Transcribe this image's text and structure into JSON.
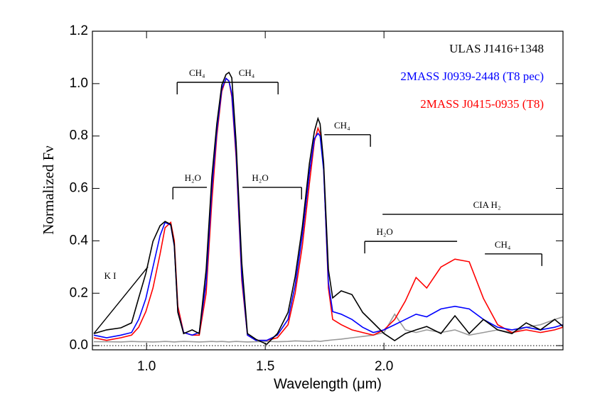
{
  "chart_data": {
    "type": "line",
    "xlabel": "Wavelength (μm)",
    "ylabel": "Normalized Fν",
    "xlim": [
      0.772,
      2.754
    ],
    "ylim": [
      -0.016,
      1.2
    ],
    "xticks": [
      {
        "value": 1,
        "label": "1.0"
      },
      1.5,
      {
        "value": 2,
        "label": "2.0"
      }
    ],
    "yticks": [
      {
        "value": 0,
        "label": "0.0"
      },
      0.2,
      0.4,
      0.6,
      0.8,
      {
        "value": 1,
        "label": "1.0"
      },
      1.2
    ],
    "zero_line": true,
    "x": [
      0.778,
      0.832,
      0.892,
      0.937,
      0.967,
      0.997,
      1.027,
      1.057,
      1.078,
      1.102,
      1.117,
      1.132,
      1.156,
      1.192,
      1.222,
      1.251,
      1.275,
      1.296,
      1.317,
      1.335,
      1.347,
      1.359,
      1.377,
      1.401,
      1.425,
      1.461,
      1.506,
      1.551,
      1.596,
      1.626,
      1.656,
      1.686,
      1.707,
      1.722,
      1.731,
      1.746,
      1.766,
      1.784,
      1.82,
      1.865,
      1.91,
      1.955,
      2.0,
      2.045,
      2.09,
      2.135,
      2.18,
      2.24,
      2.299,
      2.359,
      2.419,
      2.479,
      2.539,
      2.599,
      2.659,
      2.719,
      2.754
    ],
    "series": [
      {
        "color": "#999999",
        "values": [
          0.015,
          0.015,
          0.014,
          0.016,
          0.015,
          0.015,
          0.014,
          0.015,
          0.016,
          0.015,
          0.014,
          0.015,
          0.016,
          0.015,
          0.014,
          0.015,
          0.016,
          0.015,
          0.016,
          0.015,
          0.014,
          0.015,
          0.016,
          0.015,
          0.014,
          0.015,
          0.016,
          0.015,
          0.016,
          0.018,
          0.017,
          0.016,
          0.018,
          0.017,
          0.016,
          0.018,
          0.02,
          0.022,
          0.025,
          0.03,
          0.035,
          0.04,
          0.05,
          0.12,
          0.06,
          0.05,
          0.06,
          0.05,
          0.06,
          0.04,
          0.05,
          0.06,
          0.05,
          0.07,
          0.08,
          0.1,
          0.11
        ]
      },
      {
        "name": "2MASS J0415-0935 (T8)",
        "color": "#ff0000",
        "values": [
          0.03,
          0.02,
          0.03,
          0.04,
          0.07,
          0.13,
          0.22,
          0.35,
          0.45,
          0.47,
          0.4,
          0.15,
          0.05,
          0.04,
          0.04,
          0.2,
          0.55,
          0.8,
          0.97,
          1.02,
          1.01,
          0.95,
          0.72,
          0.25,
          0.04,
          0.02,
          0.02,
          0.03,
          0.08,
          0.2,
          0.38,
          0.62,
          0.78,
          0.83,
          0.81,
          0.68,
          0.22,
          0.1,
          0.08,
          0.06,
          0.05,
          0.04,
          0.06,
          0.1,
          0.17,
          0.26,
          0.22,
          0.3,
          0.33,
          0.32,
          0.18,
          0.08,
          0.05,
          0.06,
          0.05,
          0.06,
          0.07
        ]
      },
      {
        "name": "2MASS J0939-2448 (T8 pec)",
        "color": "#0000ff",
        "values": [
          0.04,
          0.03,
          0.04,
          0.05,
          0.1,
          0.18,
          0.3,
          0.42,
          0.47,
          0.46,
          0.38,
          0.13,
          0.05,
          0.04,
          0.05,
          0.24,
          0.6,
          0.82,
          0.98,
          1.02,
          1.01,
          0.96,
          0.74,
          0.27,
          0.04,
          0.02,
          0.02,
          0.04,
          0.1,
          0.23,
          0.42,
          0.66,
          0.79,
          0.81,
          0.8,
          0.67,
          0.24,
          0.13,
          0.12,
          0.1,
          0.07,
          0.05,
          0.06,
          0.08,
          0.1,
          0.12,
          0.11,
          0.14,
          0.15,
          0.14,
          0.1,
          0.07,
          0.06,
          0.07,
          0.06,
          0.07,
          0.08
        ]
      },
      {
        "name": "ULAS J1416+1348",
        "color": "#000000",
        "values": [
          0.046,
          0.06,
          0.068,
          0.087,
          0.182,
          0.276,
          0.398,
          0.458,
          0.474,
          0.463,
          0.385,
          0.127,
          0.046,
          0.06,
          0.046,
          0.29,
          0.642,
          0.846,
          0.995,
          1.035,
          1.043,
          1.022,
          0.778,
          0.317,
          0.046,
          0.024,
          0.005,
          0.046,
          0.127,
          0.263,
          0.453,
          0.696,
          0.818,
          0.867,
          0.846,
          0.696,
          0.29,
          0.182,
          0.209,
          0.195,
          0.127,
          0.087,
          0.046,
          0.019,
          0.046,
          0.06,
          0.073,
          0.046,
          0.114,
          0.046,
          0.1,
          0.06,
          0.046,
          0.087,
          0.06,
          0.1,
          0.073
        ]
      }
    ],
    "annotations": [
      {
        "text": "CH₄",
        "x": [
          1.129,
          1.347
        ],
        "y": 1.005,
        "tick": "left"
      },
      {
        "text": "CH₄",
        "x": [
          1.347,
          1.554
        ],
        "y": 1.005,
        "tick": "right"
      },
      {
        "text": "H₂O",
        "x": [
          1.111,
          1.254
        ],
        "y": 0.604,
        "tick": "left"
      },
      {
        "text": "H₂O",
        "x": [
          1.404,
          1.653
        ],
        "y": 0.604,
        "tick": "right"
      },
      {
        "text": "CH₄",
        "x": [
          1.749,
          1.943
        ],
        "y": 0.805,
        "tick": "right"
      },
      {
        "text": "CIA H₂",
        "x": [
          1.994,
          2.754
        ],
        "y": 0.501,
        "tick": "none"
      },
      {
        "text": "H₂O",
        "x": [
          1.919,
          2.308
        ],
        "y": 0.398,
        "tick": "left"
      },
      {
        "text": "CH₄",
        "x": [
          2.425,
          2.665
        ],
        "y": 0.35,
        "tick": "right"
      }
    ],
    "pointer": {
      "text": "K I",
      "x": [
        1.006,
        0.778
      ],
      "y": [
        0.301,
        0.046
      ]
    }
  }
}
